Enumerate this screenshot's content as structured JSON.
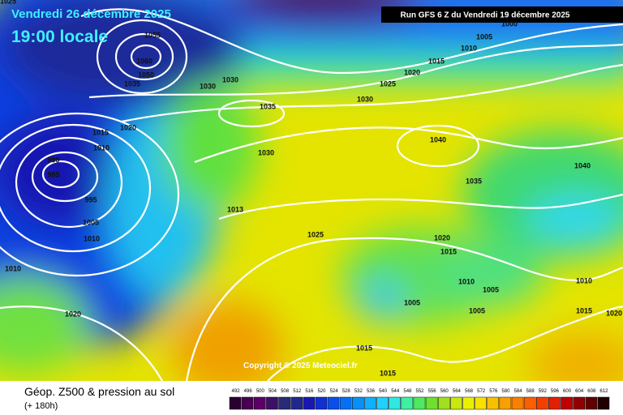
{
  "header": {
    "date": "Vendredi 26 décembre 2025",
    "time": "19:00 locale",
    "run": "Run GFS 6 Z du Vendredi 19 décembre 2025",
    "copyright": "Copyright © 2025 Meteociel.fr"
  },
  "isobar_labels": [
    "1025",
    "1055",
    "1060",
    "1050",
    "1035",
    "1030",
    "1030",
    "1035",
    "1030",
    "1025",
    "1020",
    "1015",
    "1010",
    "1005",
    "1000",
    "1020",
    "1015",
    "1010",
    "990",
    "985",
    "995",
    "1005",
    "1010",
    "1010",
    "1020",
    "1013",
    "1030",
    "1025",
    "1040",
    "1035",
    "1040",
    "1020",
    "1015",
    "1010",
    "1005",
    "1005",
    "1005",
    "1010",
    "1015",
    "1020",
    "1015",
    "1015"
  ],
  "legend": {
    "title": "Géop. Z500 & pression au sol",
    "lead_time": "(+ 180h)",
    "ticks": [
      492,
      496,
      500,
      504,
      508,
      512,
      516,
      520,
      524,
      528,
      532,
      536,
      540,
      544,
      548,
      552,
      556,
      560,
      564,
      568,
      572,
      576,
      580,
      584,
      588,
      592,
      596,
      600,
      604,
      608,
      612
    ],
    "colors": [
      "#2a0030",
      "#4a0050",
      "#5c0068",
      "#3c1068",
      "#2a2a7a",
      "#202890",
      "#1818b0",
      "#1030d0",
      "#0a50e8",
      "#0870f0",
      "#0890f8",
      "#10b0ff",
      "#20d0ff",
      "#30e8e0",
      "#40f0a0",
      "#50e860",
      "#70e030",
      "#a0e020",
      "#c8e810",
      "#e8f000",
      "#f8e000",
      "#f8c000",
      "#f8a000",
      "#f88000",
      "#f86000",
      "#f04000",
      "#e02000",
      "#c00000",
      "#900000",
      "#600000",
      "#200000"
    ]
  }
}
